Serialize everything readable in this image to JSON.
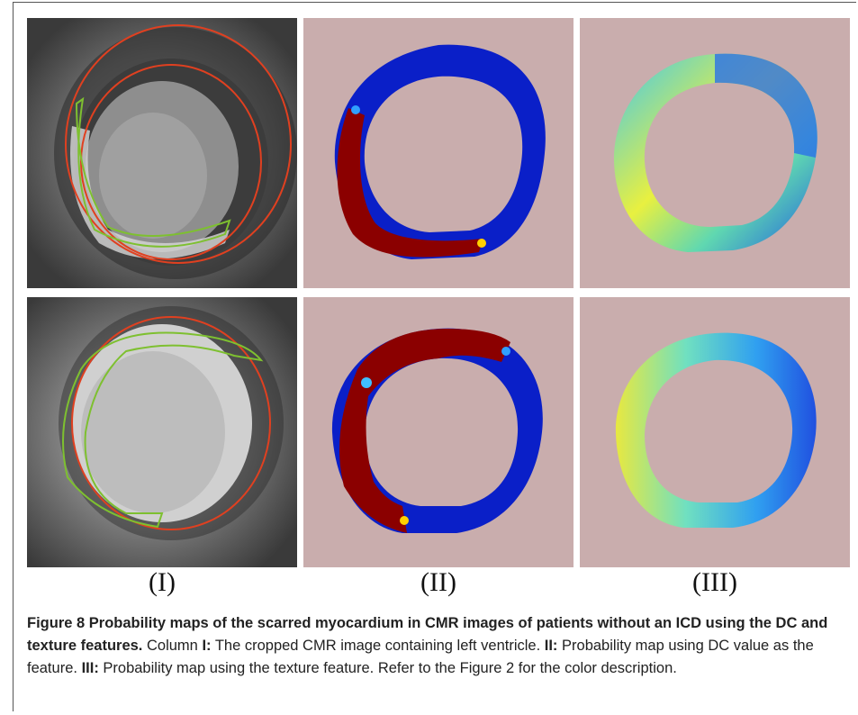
{
  "figure": {
    "column_labels": [
      "(I)",
      "(II)",
      "(III)"
    ],
    "caption": {
      "title": "Figure 8 Probability maps of the scarred myocardium in CMR images of patients without an ICD using the DC and texture features.",
      "col1_prefix": "Column",
      "col1_tag": "I:",
      "col1_text": "The cropped CMR image containing left ventricle.",
      "col2_tag": "II:",
      "col2_text": "Probability map using DC value as the feature.",
      "col3_tag": "III:",
      "col3_text": "Probability map using the texture feature. Refer to the Figure 2 for the color description."
    },
    "colors": {
      "map_background": "#c9adad",
      "prob_high": "#8b0000",
      "prob_low": "#0a1fc8",
      "contour_red": "#e04020",
      "contour_green": "#7ec030"
    }
  }
}
